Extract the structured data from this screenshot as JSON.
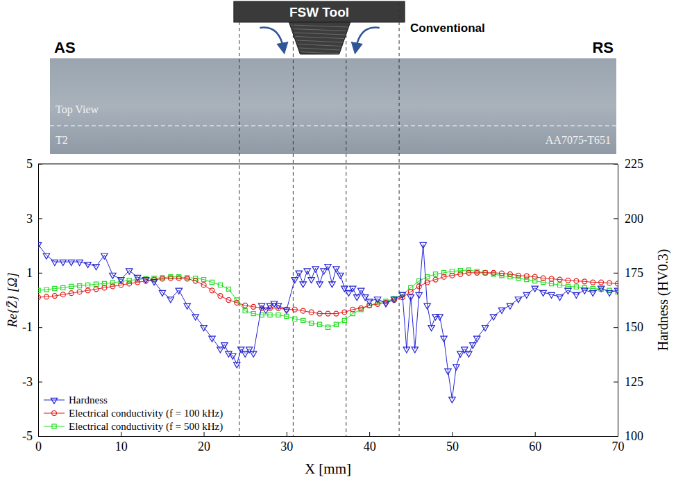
{
  "chart_data": {
    "type": "line",
    "annotations": [
      "FSW Tool",
      "Conventional",
      "AS",
      "RS",
      "Top View",
      "T2",
      "AA7075-T651"
    ],
    "xlabel": "X [mm]",
    "ylabel": "Re{Z̄} [Ω]",
    "y2label": "Hardness (HV0.3)",
    "xlim": [
      0,
      70
    ],
    "xticks": [
      0,
      10,
      20,
      30,
      40,
      50,
      60,
      70
    ],
    "ylim": [
      -5,
      5
    ],
    "yticks": [
      -5,
      -3,
      -1,
      1,
      3,
      5
    ],
    "y2lim": [
      100,
      225
    ],
    "y2ticks": [
      100,
      125,
      150,
      175,
      200,
      225
    ],
    "vlines": [
      24.3,
      30.8,
      37.2,
      43.6
    ],
    "grid": false,
    "legend": "lower left",
    "series": [
      {
        "name": "Hardness",
        "color": "#2323d6",
        "marker": "triangle-down",
        "line_style": "solid",
        "axis": "y2",
        "x": [
          0,
          1,
          2,
          3,
          4,
          5,
          6,
          7,
          8,
          9,
          10,
          11,
          12,
          13,
          14,
          15,
          16,
          17,
          18,
          19,
          20,
          21,
          22,
          22.5,
          23,
          23.5,
          24,
          24.5,
          25,
          25.5,
          26,
          27,
          27.5,
          28,
          28.5,
          29,
          30,
          31,
          31.5,
          32,
          32.5,
          33,
          33.5,
          34,
          34.5,
          35,
          35.5,
          36,
          36.5,
          37,
          37.5,
          38,
          38.5,
          39,
          39.5,
          40,
          41,
          42,
          43,
          44,
          44.5,
          45,
          45.5,
          46,
          46.5,
          47,
          47.5,
          48,
          48.5,
          49,
          49.5,
          50,
          50.5,
          51,
          51.5,
          52,
          52.5,
          53,
          54,
          55,
          56,
          57,
          58,
          59,
          60,
          61,
          62,
          63,
          64,
          65,
          66,
          67,
          68,
          69,
          70
        ],
        "values": [
          188,
          183,
          180,
          180,
          180,
          180,
          179,
          178,
          183,
          174,
          172,
          176,
          173,
          172,
          171,
          166,
          163,
          167,
          160,
          155,
          150,
          145,
          140,
          142,
          138,
          137,
          133,
          140,
          138,
          140,
          138,
          160,
          158,
          160,
          161,
          160,
          158,
          172,
          175,
          170,
          176,
          172,
          177,
          170,
          176,
          178,
          170,
          177,
          174,
          168,
          166,
          168,
          164,
          167,
          164,
          162,
          163,
          161,
          163,
          165,
          140,
          164,
          140,
          165,
          188,
          160,
          150,
          155,
          155,
          145,
          130,
          117,
          132,
          138,
          140,
          138,
          142,
          145,
          150,
          155,
          158,
          160,
          163,
          165,
          168,
          166,
          165,
          164,
          167,
          165,
          167,
          166,
          168,
          166,
          167
        ]
      },
      {
        "name": "Electrical conductivity (f = 100 kHz)",
        "color": "#e31a1c",
        "marker": "circle",
        "line_style": "solid",
        "x": [
          0,
          1,
          2,
          3,
          4,
          5,
          6,
          7,
          8,
          9,
          10,
          11,
          12,
          13,
          14,
          15,
          16,
          17,
          18,
          19,
          20,
          21,
          22,
          23,
          24,
          25,
          26,
          27,
          28,
          29,
          30,
          31,
          32,
          33,
          34,
          35,
          36,
          37,
          38,
          39,
          40,
          41,
          42,
          43,
          44,
          45,
          46,
          47,
          48,
          49,
          50,
          51,
          52,
          53,
          54,
          55,
          56,
          57,
          58,
          59,
          60,
          61,
          62,
          63,
          64,
          65,
          66,
          67,
          68,
          69,
          70
        ],
        "values": [
          0.1,
          0.12,
          0.15,
          0.2,
          0.25,
          0.3,
          0.35,
          0.4,
          0.45,
          0.5,
          0.55,
          0.6,
          0.65,
          0.7,
          0.75,
          0.78,
          0.8,
          0.8,
          0.78,
          0.7,
          0.55,
          0.35,
          0.15,
          0.0,
          -0.1,
          -0.2,
          -0.25,
          -0.3,
          -0.3,
          -0.3,
          -0.35,
          -0.35,
          -0.4,
          -0.45,
          -0.5,
          -0.5,
          -0.5,
          -0.45,
          -0.35,
          -0.3,
          -0.2,
          -0.15,
          -0.1,
          0.0,
          0.1,
          0.3,
          0.5,
          0.65,
          0.75,
          0.85,
          0.9,
          0.95,
          1.0,
          1.0,
          1.0,
          1.0,
          0.98,
          0.95,
          0.9,
          0.88,
          0.85,
          0.8,
          0.78,
          0.75,
          0.72,
          0.7,
          0.68,
          0.65,
          0.65,
          0.62,
          0.6
        ]
      },
      {
        "name": "Electrical conductivity (f = 500 kHz)",
        "color": "#22dd22",
        "marker": "square",
        "line_style": "solid",
        "x": [
          0,
          1,
          2,
          3,
          4,
          5,
          6,
          7,
          8,
          9,
          10,
          11,
          12,
          13,
          14,
          15,
          16,
          17,
          18,
          19,
          20,
          21,
          22,
          23,
          24,
          25,
          26,
          27,
          28,
          29,
          30,
          31,
          32,
          33,
          34,
          35,
          36,
          37,
          38,
          39,
          40,
          41,
          42,
          43,
          44,
          45,
          46,
          47,
          48,
          49,
          50,
          51,
          52,
          53,
          54,
          55,
          56,
          57,
          58,
          59,
          60,
          61,
          62,
          63,
          64,
          65,
          66,
          67,
          68,
          69,
          70
        ],
        "values": [
          0.35,
          0.38,
          0.42,
          0.45,
          0.5,
          0.52,
          0.55,
          0.58,
          0.6,
          0.63,
          0.68,
          0.72,
          0.75,
          0.78,
          0.8,
          0.82,
          0.85,
          0.85,
          0.82,
          0.8,
          0.75,
          0.65,
          0.55,
          0.4,
          0.0,
          -0.4,
          -0.5,
          -0.55,
          -0.55,
          -0.55,
          -0.6,
          -0.7,
          -0.75,
          -0.85,
          -0.9,
          -1.0,
          -0.9,
          -0.75,
          -0.5,
          -0.35,
          -0.2,
          -0.1,
          -0.05,
          0.05,
          0.2,
          0.45,
          0.7,
          0.85,
          0.95,
          1.0,
          1.05,
          1.08,
          1.1,
          1.05,
          1.0,
          0.95,
          0.9,
          0.85,
          0.8,
          0.75,
          0.7,
          0.65,
          0.6,
          0.55,
          0.5,
          0.48,
          0.45,
          0.42,
          0.4,
          0.35,
          0.3
        ]
      }
    ]
  }
}
